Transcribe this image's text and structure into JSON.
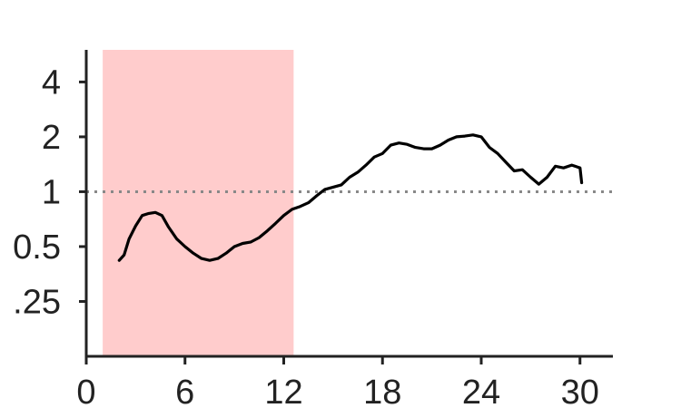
{
  "chart_data": {
    "type": "line",
    "title": "",
    "xlabel": "",
    "ylabel": "",
    "y_scale": "log2",
    "xlim": [
      0,
      32
    ],
    "ylim": [
      0.125,
      6
    ],
    "x_ticks": [
      0,
      6,
      12,
      18,
      24,
      30
    ],
    "x_tick_labels": [
      "0",
      "6",
      "12",
      "18",
      "24",
      "30"
    ],
    "y_ticks": [
      0.25,
      0.5,
      1,
      2,
      4
    ],
    "y_tick_labels": [
      ".25",
      "0.5",
      "1",
      "2",
      "4"
    ],
    "grid": false,
    "shaded_region": {
      "x_start": 1,
      "x_end": 12.6,
      "color": "#ffcccc"
    },
    "reference_line": {
      "y": 1,
      "style": "dotted",
      "color": "#888888"
    },
    "series": [
      {
        "color": "#000000",
        "points": [
          [
            2,
            0.42
          ],
          [
            2.3,
            0.45
          ],
          [
            2.6,
            0.55
          ],
          [
            3,
            0.65
          ],
          [
            3.4,
            0.74
          ],
          [
            3.8,
            0.76
          ],
          [
            4.2,
            0.77
          ],
          [
            4.6,
            0.74
          ],
          [
            5,
            0.64
          ],
          [
            5.5,
            0.55
          ],
          [
            6,
            0.5
          ],
          [
            6.5,
            0.46
          ],
          [
            7,
            0.43
          ],
          [
            7.5,
            0.42
          ],
          [
            8,
            0.43
          ],
          [
            8.5,
            0.46
          ],
          [
            9,
            0.5
          ],
          [
            9.5,
            0.52
          ],
          [
            10,
            0.53
          ],
          [
            10.5,
            0.56
          ],
          [
            11,
            0.61
          ],
          [
            11.5,
            0.67
          ],
          [
            12,
            0.74
          ],
          [
            12.5,
            0.8
          ],
          [
            13,
            0.83
          ],
          [
            13.5,
            0.87
          ],
          [
            14,
            0.95
          ],
          [
            14.5,
            1.03
          ],
          [
            15,
            1.06
          ],
          [
            15.5,
            1.09
          ],
          [
            16,
            1.2
          ],
          [
            16.5,
            1.28
          ],
          [
            17,
            1.4
          ],
          [
            17.5,
            1.55
          ],
          [
            18,
            1.62
          ],
          [
            18.5,
            1.8
          ],
          [
            19,
            1.85
          ],
          [
            19.5,
            1.82
          ],
          [
            20,
            1.75
          ],
          [
            20.5,
            1.72
          ],
          [
            21,
            1.72
          ],
          [
            21.5,
            1.8
          ],
          [
            22,
            1.92
          ],
          [
            22.5,
            2.0
          ],
          [
            23,
            2.02
          ],
          [
            23.5,
            2.05
          ],
          [
            24,
            2.0
          ],
          [
            24.5,
            1.75
          ],
          [
            25,
            1.62
          ],
          [
            25.5,
            1.45
          ],
          [
            26,
            1.3
          ],
          [
            26.5,
            1.32
          ],
          [
            27,
            1.2
          ],
          [
            27.5,
            1.1
          ],
          [
            28,
            1.2
          ],
          [
            28.5,
            1.38
          ],
          [
            29,
            1.35
          ],
          [
            29.5,
            1.4
          ],
          [
            30,
            1.35
          ],
          [
            30.1,
            1.12
          ]
        ]
      }
    ]
  }
}
